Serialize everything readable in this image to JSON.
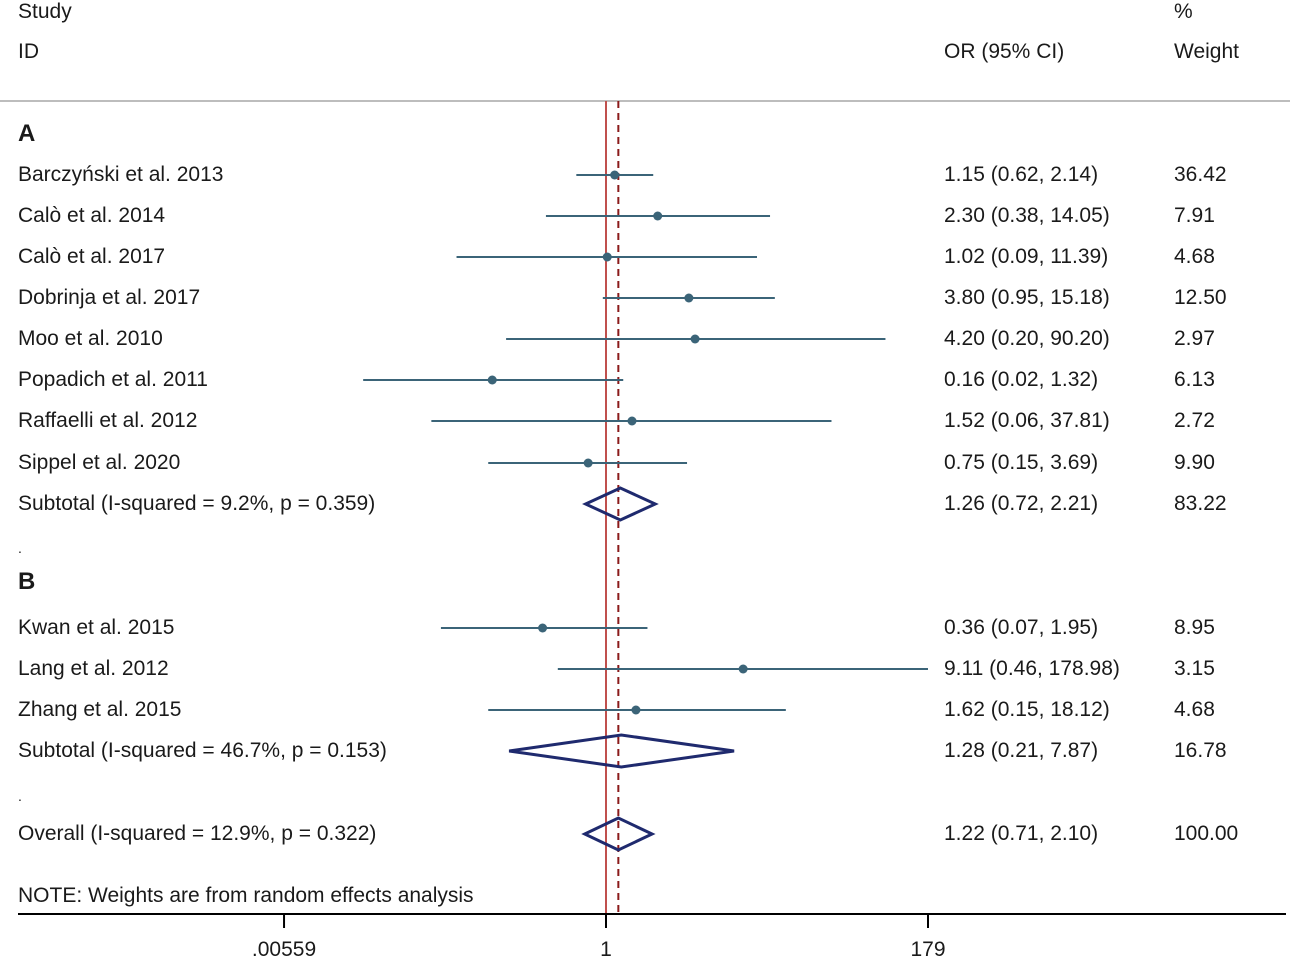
{
  "header": {
    "study_line1": "Study",
    "study_line2": "ID",
    "or_label": "OR (95% CI)",
    "weight_line1": "%",
    "weight_line2": "Weight"
  },
  "note": "NOTE: Weights are from random effects analysis",
  "colors": {
    "ci_line": "#3b6478",
    "point": "#3b6478",
    "diamond": "#1f2a6e",
    "null_line": "#c0504d",
    "overall_line": "#8b1a1a",
    "axis": "#000000"
  },
  "chart_data": {
    "type": "forest",
    "xscale": "log",
    "null_value": 1,
    "overall_estimate": 1.22,
    "x_ticks": [
      {
        "value": 0.00559,
        "label": ".00559"
      },
      {
        "value": 1,
        "label": "1"
      },
      {
        "value": 179,
        "label": "179"
      }
    ],
    "rows": [
      {
        "kind": "group",
        "label": "A"
      },
      {
        "kind": "study",
        "label": "Barczyński et al. 2013",
        "or": 1.15,
        "lo": 0.62,
        "hi": 2.14,
        "ci_text": "1.15 (0.62, 2.14)",
        "weight": "36.42"
      },
      {
        "kind": "study",
        "label": "Calò et al. 2014",
        "or": 2.3,
        "lo": 0.38,
        "hi": 14.05,
        "ci_text": "2.30 (0.38, 14.05)",
        "weight": "7.91"
      },
      {
        "kind": "study",
        "label": "Calò et al. 2017",
        "or": 1.02,
        "lo": 0.09,
        "hi": 11.39,
        "ci_text": "1.02 (0.09, 11.39)",
        "weight": "4.68"
      },
      {
        "kind": "study",
        "label": "Dobrinja et al. 2017",
        "or": 3.8,
        "lo": 0.95,
        "hi": 15.18,
        "ci_text": "3.80 (0.95, 15.18)",
        "weight": "12.50"
      },
      {
        "kind": "study",
        "label": "Moo et al. 2010",
        "or": 4.2,
        "lo": 0.2,
        "hi": 90.2,
        "ci_text": "4.20 (0.20, 90.20)",
        "weight": "2.97"
      },
      {
        "kind": "study",
        "label": "Popadich et al. 2011",
        "or": 0.16,
        "lo": 0.02,
        "hi": 1.32,
        "ci_text": "0.16 (0.02, 1.32)",
        "weight": "6.13"
      },
      {
        "kind": "study",
        "label": "Raffaelli et al. 2012",
        "or": 1.52,
        "lo": 0.06,
        "hi": 37.81,
        "ci_text": "1.52 (0.06, 37.81)",
        "weight": "2.72"
      },
      {
        "kind": "study",
        "label": "Sippel et al. 2020",
        "or": 0.75,
        "lo": 0.15,
        "hi": 3.69,
        "ci_text": "0.75 (0.15, 3.69)",
        "weight": "9.90"
      },
      {
        "kind": "subtotal",
        "label": "Subtotal  (I-squared = 9.2%, p = 0.359)",
        "or": 1.26,
        "lo": 0.72,
        "hi": 2.21,
        "ci_text": "1.26 (0.72, 2.21)",
        "weight": "83.22"
      },
      {
        "kind": "spacer",
        "label": "."
      },
      {
        "kind": "group",
        "label": "B"
      },
      {
        "kind": "study",
        "label": "Kwan et al. 2015",
        "or": 0.36,
        "lo": 0.07,
        "hi": 1.95,
        "ci_text": "0.36 (0.07, 1.95)",
        "weight": "8.95"
      },
      {
        "kind": "study",
        "label": "Lang et al. 2012",
        "or": 9.11,
        "lo": 0.46,
        "hi": 178.98,
        "ci_text": "9.11 (0.46, 178.98)",
        "weight": "3.15"
      },
      {
        "kind": "study",
        "label": "Zhang et al. 2015",
        "or": 1.62,
        "lo": 0.15,
        "hi": 18.12,
        "ci_text": "1.62 (0.15, 18.12)",
        "weight": "4.68"
      },
      {
        "kind": "subtotal",
        "label": "Subtotal  (I-squared = 46.7%, p = 0.153)",
        "or": 1.28,
        "lo": 0.21,
        "hi": 7.87,
        "ci_text": "1.28 (0.21, 7.87)",
        "weight": "16.78"
      },
      {
        "kind": "spacer",
        "label": "."
      },
      {
        "kind": "overall",
        "label": "Overall  (I-squared = 12.9%, p = 0.322)",
        "or": 1.22,
        "lo": 0.71,
        "hi": 2.1,
        "ci_text": "1.22 (0.71, 2.10)",
        "weight": "100.00"
      }
    ]
  }
}
